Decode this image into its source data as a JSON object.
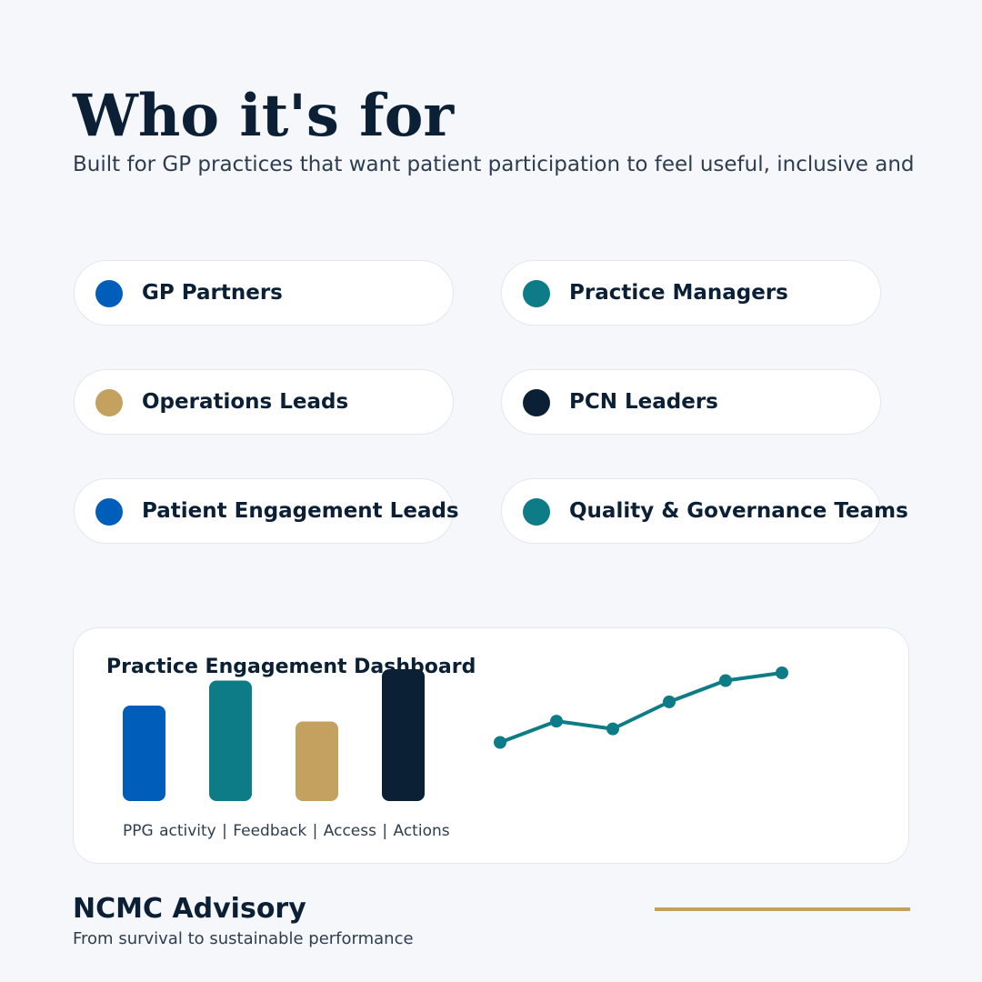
{
  "header": {
    "title": "Who it's for",
    "subtitle": "Built for GP practices that want patient participation to feel useful, inclusive and"
  },
  "audiences": [
    {
      "label": "GP Partners",
      "color": "#005ebb"
    },
    {
      "label": "Practice Managers",
      "color": "#0e7c86"
    },
    {
      "label": "Operations Leads",
      "color": "#c4a15f"
    },
    {
      "label": "PCN Leaders",
      "color": "#0b1f35"
    },
    {
      "label": "Patient Engagement Leads",
      "color": "#005ebb"
    },
    {
      "label": "Quality & Governance Teams",
      "color": "#0e7c86"
    }
  ],
  "dashboard": {
    "title": "Practice Engagement Dashboard",
    "caption": "PPG activity  |  Feedback  |  Access  |  Actions"
  },
  "chart_data": [
    {
      "type": "bar",
      "categories": [
        "PPG activity",
        "Feedback",
        "Access",
        "Actions"
      ],
      "values": [
        42,
        53,
        35,
        58
      ],
      "colors": [
        "#005ebb",
        "#0e7c86",
        "#c4a15f",
        "#0b1f35"
      ],
      "ylim": [
        0,
        58
      ]
    },
    {
      "type": "line",
      "x": [
        1,
        2,
        3,
        4,
        5,
        6
      ],
      "values": [
        28,
        39,
        35,
        49,
        60,
        64
      ],
      "color": "#0e7c86",
      "ylim": [
        0,
        64
      ]
    }
  ],
  "footer": {
    "brand": "NCMC Advisory",
    "tagline": "From survival to sustainable performance",
    "accent_color": "#c4a15f"
  }
}
